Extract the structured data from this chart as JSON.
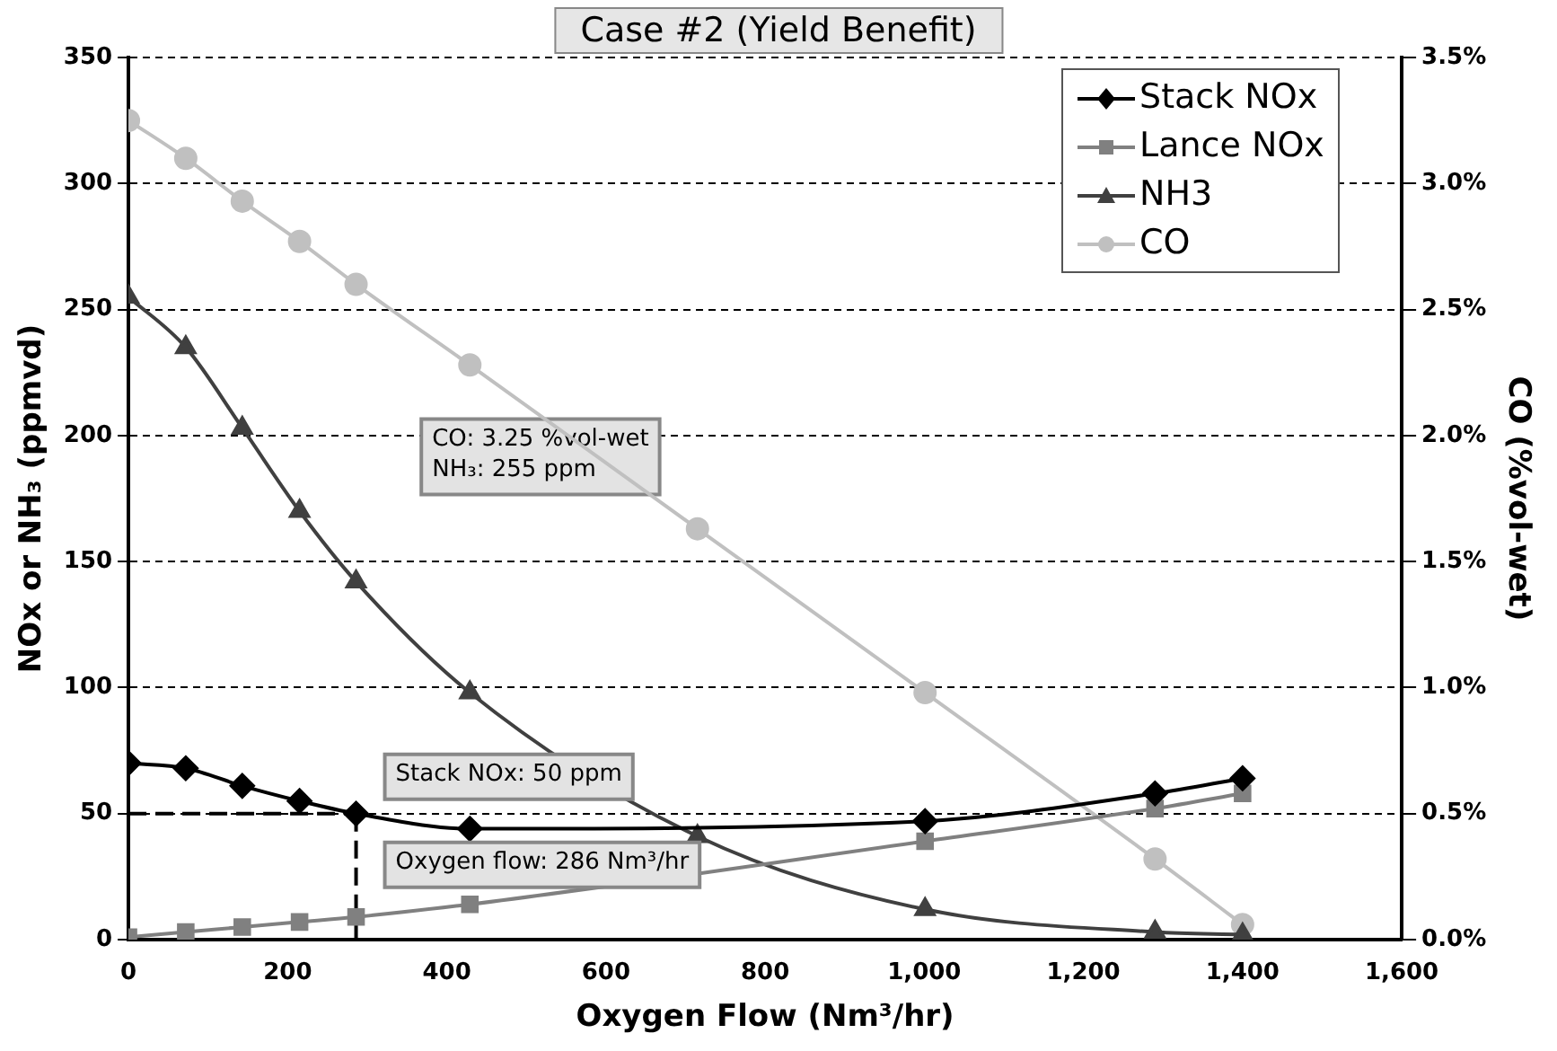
{
  "chart_data": {
    "type": "line",
    "title": "Case #2 (Yield Benefit)",
    "xlabel": "Oxygen Flow (Nm³/hr)",
    "ylabel": "NOx or NH₃ (ppmvd)",
    "y2label": "CO (%vol-wet)",
    "x": [
      0,
      72,
      143,
      215,
      286,
      429,
      715,
      1001,
      1290,
      1400
    ],
    "series": [
      {
        "name": "Stack NOx",
        "color": "#000000",
        "marker": "diamond",
        "values": [
          70,
          68,
          61,
          55,
          50,
          44,
          null,
          47,
          58,
          64
        ]
      },
      {
        "name": "Lance NOx",
        "color": "#808080",
        "marker": "square",
        "values": [
          1,
          3,
          5,
          7,
          9,
          14,
          null,
          39,
          52,
          58
        ]
      },
      {
        "name": "NH3",
        "color": "#404040",
        "marker": "triangle",
        "values": [
          255,
          235,
          203,
          170,
          142,
          98,
          41,
          12,
          3,
          2
        ]
      },
      {
        "name": "CO",
        "color": "#c0c0c0",
        "marker": "circle",
        "axis": "y2",
        "values": [
          3.25,
          3.1,
          2.93,
          2.77,
          2.6,
          2.28,
          1.63,
          0.98,
          0.32,
          0.06
        ]
      }
    ],
    "xlim": [
      0,
      1600
    ],
    "xticks": [
      0,
      200,
      400,
      600,
      800,
      {
        "value": 1000,
        "label": "1,000"
      },
      {
        "value": 1200,
        "label": "1,200"
      },
      {
        "value": 1400,
        "label": "1,400"
      },
      {
        "value": 1600,
        "label": "1,600"
      }
    ],
    "ylim": [
      0,
      350
    ],
    "yticks": [
      0,
      50,
      100,
      150,
      200,
      250,
      300,
      350
    ],
    "y2lim": [
      0,
      3.5
    ],
    "y2ticks": [
      {
        "value": 0,
        "label": "0.0%"
      },
      {
        "value": 0.5,
        "label": "0.5%"
      },
      {
        "value": 1,
        "label": "1.0%"
      },
      {
        "value": 1.5,
        "label": "1.5%"
      },
      {
        "value": 2,
        "label": "2.0%"
      },
      {
        "value": 2.5,
        "label": "2.5%"
      },
      {
        "value": 3,
        "label": "3.0%"
      },
      {
        "value": 3.5,
        "label": "3.5%"
      }
    ],
    "grid": "y",
    "legend": "top right",
    "line_style": "solid",
    "annotations": [
      "CO: 3.25 %vol-wet\nNH₃: 255 ppm"
    ],
    "ref_lines": [
      {
        "axis": "y",
        "value": 50,
        "label": "Stack NOx: 50 ppm",
        "color": "#000000",
        "line_style": "dashed"
      },
      {
        "axis": "x",
        "value": 286,
        "label": "Oxygen flow: 286 Nm³/hr",
        "color": "#000000",
        "line_style": "dashed"
      }
    ]
  }
}
